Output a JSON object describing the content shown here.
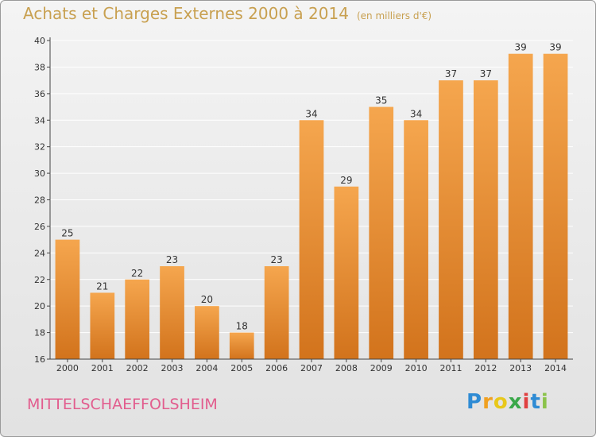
{
  "header": {
    "title": "Achats et Charges Externes 2000 à 2014",
    "unit": "(en milliers d'€)"
  },
  "footer": {
    "commune": "MITTELSCHAEFFOLSHEIM",
    "logo_letters": [
      "P",
      "r",
      "o",
      "x",
      "i",
      "t",
      "i"
    ]
  },
  "colors": {
    "bar_light": "#f5a64e",
    "bar_dark": "#d2731c",
    "title": "#c8a050",
    "commune": "#e25d8e",
    "grid": "#ffffff"
  },
  "chart_data": {
    "type": "bar",
    "title": "Achats et Charges Externes 2000 à 2014",
    "subtitle": "(en milliers d'€)",
    "categories": [
      "2000",
      "2001",
      "2002",
      "2003",
      "2004",
      "2005",
      "2006",
      "2007",
      "2008",
      "2009",
      "2010",
      "2011",
      "2012",
      "2013",
      "2014"
    ],
    "values": [
      25,
      21,
      22,
      23,
      20,
      18,
      23,
      34,
      29,
      35,
      34,
      37,
      37,
      39,
      39
    ],
    "ylim": [
      16,
      40
    ],
    "yticks": [
      16,
      18,
      20,
      22,
      24,
      26,
      28,
      30,
      32,
      34,
      36,
      38,
      40
    ],
    "grid": true,
    "data_labels": true
  }
}
